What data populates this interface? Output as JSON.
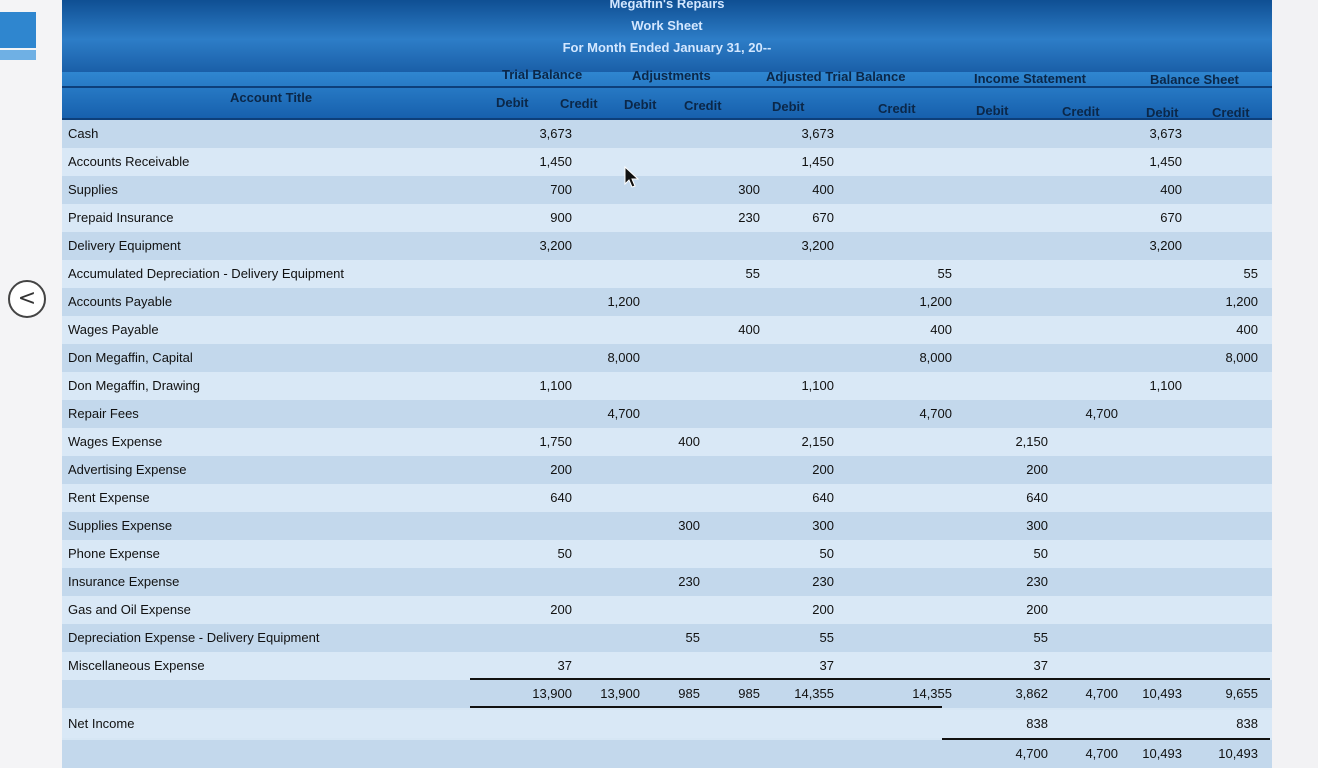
{
  "header": {
    "company": "Megaffin's Repairs",
    "title": "Work Sheet",
    "period": "For Month Ended January 31, 20--"
  },
  "column_groups": [
    "Trial Balance",
    "Adjustments",
    "Adjusted Trial Balance",
    "Income Statement",
    "Balance Sheet"
  ],
  "account_title_label": "Account Title",
  "sub_headers": [
    "Debit",
    "Credit",
    "Debit",
    "Credit",
    "Debit",
    "Credit",
    "Debit",
    "Credit",
    "Debit",
    "Credit"
  ],
  "rows": [
    {
      "title": "Cash",
      "values": [
        "3,673",
        "",
        "",
        "",
        "3,673",
        "",
        "",
        "",
        "3,673",
        ""
      ]
    },
    {
      "title": "Accounts Receivable",
      "values": [
        "1,450",
        "",
        "",
        "",
        "1,450",
        "",
        "",
        "",
        "1,450",
        ""
      ]
    },
    {
      "title": "Supplies",
      "values": [
        "700",
        "",
        "",
        "300",
        "400",
        "",
        "",
        "",
        "400",
        ""
      ]
    },
    {
      "title": "Prepaid Insurance",
      "values": [
        "900",
        "",
        "",
        "230",
        "670",
        "",
        "",
        "",
        "670",
        ""
      ]
    },
    {
      "title": "Delivery Equipment",
      "values": [
        "3,200",
        "",
        "",
        "",
        "3,200",
        "",
        "",
        "",
        "3,200",
        ""
      ]
    },
    {
      "title": "Accumulated Depreciation - Delivery Equipment",
      "values": [
        "",
        "",
        "",
        "55",
        "",
        "55",
        "",
        "",
        "",
        "55"
      ]
    },
    {
      "title": "Accounts Payable",
      "values": [
        "",
        "1,200",
        "",
        "",
        "",
        "1,200",
        "",
        "",
        "",
        "1,200"
      ]
    },
    {
      "title": "Wages Payable",
      "values": [
        "",
        "",
        "",
        "400",
        "",
        "400",
        "",
        "",
        "",
        "400"
      ]
    },
    {
      "title": "Don Megaffin, Capital",
      "values": [
        "",
        "8,000",
        "",
        "",
        "",
        "8,000",
        "",
        "",
        "",
        "8,000"
      ]
    },
    {
      "title": "Don Megaffin, Drawing",
      "values": [
        "1,100",
        "",
        "",
        "",
        "1,100",
        "",
        "",
        "",
        "1,100",
        ""
      ]
    },
    {
      "title": "Repair Fees",
      "values": [
        "",
        "4,700",
        "",
        "",
        "",
        "4,700",
        "",
        "4,700",
        "",
        ""
      ]
    },
    {
      "title": "Wages Expense",
      "values": [
        "1,750",
        "",
        "400",
        "",
        "2,150",
        "",
        "2,150",
        "",
        "",
        ""
      ]
    },
    {
      "title": "Advertising Expense",
      "values": [
        "200",
        "",
        "",
        "",
        "200",
        "",
        "200",
        "",
        "",
        ""
      ]
    },
    {
      "title": "Rent Expense",
      "values": [
        "640",
        "",
        "",
        "",
        "640",
        "",
        "640",
        "",
        "",
        ""
      ]
    },
    {
      "title": "Supplies Expense",
      "values": [
        "",
        "",
        "300",
        "",
        "300",
        "",
        "300",
        "",
        "",
        ""
      ]
    },
    {
      "title": "Phone Expense",
      "values": [
        "50",
        "",
        "",
        "",
        "50",
        "",
        "50",
        "",
        "",
        ""
      ]
    },
    {
      "title": "Insurance Expense",
      "values": [
        "",
        "",
        "230",
        "",
        "230",
        "",
        "230",
        "",
        "",
        ""
      ]
    },
    {
      "title": "Gas and Oil Expense",
      "values": [
        "200",
        "",
        "",
        "",
        "200",
        "",
        "200",
        "",
        "",
        ""
      ]
    },
    {
      "title": "Depreciation Expense - Delivery Equipment",
      "values": [
        "",
        "",
        "55",
        "",
        "55",
        "",
        "55",
        "",
        "",
        ""
      ]
    },
    {
      "title": "Miscellaneous Expense",
      "values": [
        "37",
        "",
        "",
        "",
        "37",
        "",
        "37",
        "",
        "",
        ""
      ]
    }
  ],
  "totals": [
    "13,900",
    "13,900",
    "985",
    "985",
    "14,355",
    "14,355",
    "3,862",
    "4,700",
    "10,493",
    "9,655"
  ],
  "net_income": {
    "label": "Net Income",
    "income_debit": "838",
    "balance_credit": "838"
  },
  "final_totals": {
    "income_debit": "4,700",
    "income_credit": "4,700",
    "balance_debit": "10,493",
    "balance_credit": "10,493"
  },
  "nav": {
    "back_icon": "<"
  }
}
